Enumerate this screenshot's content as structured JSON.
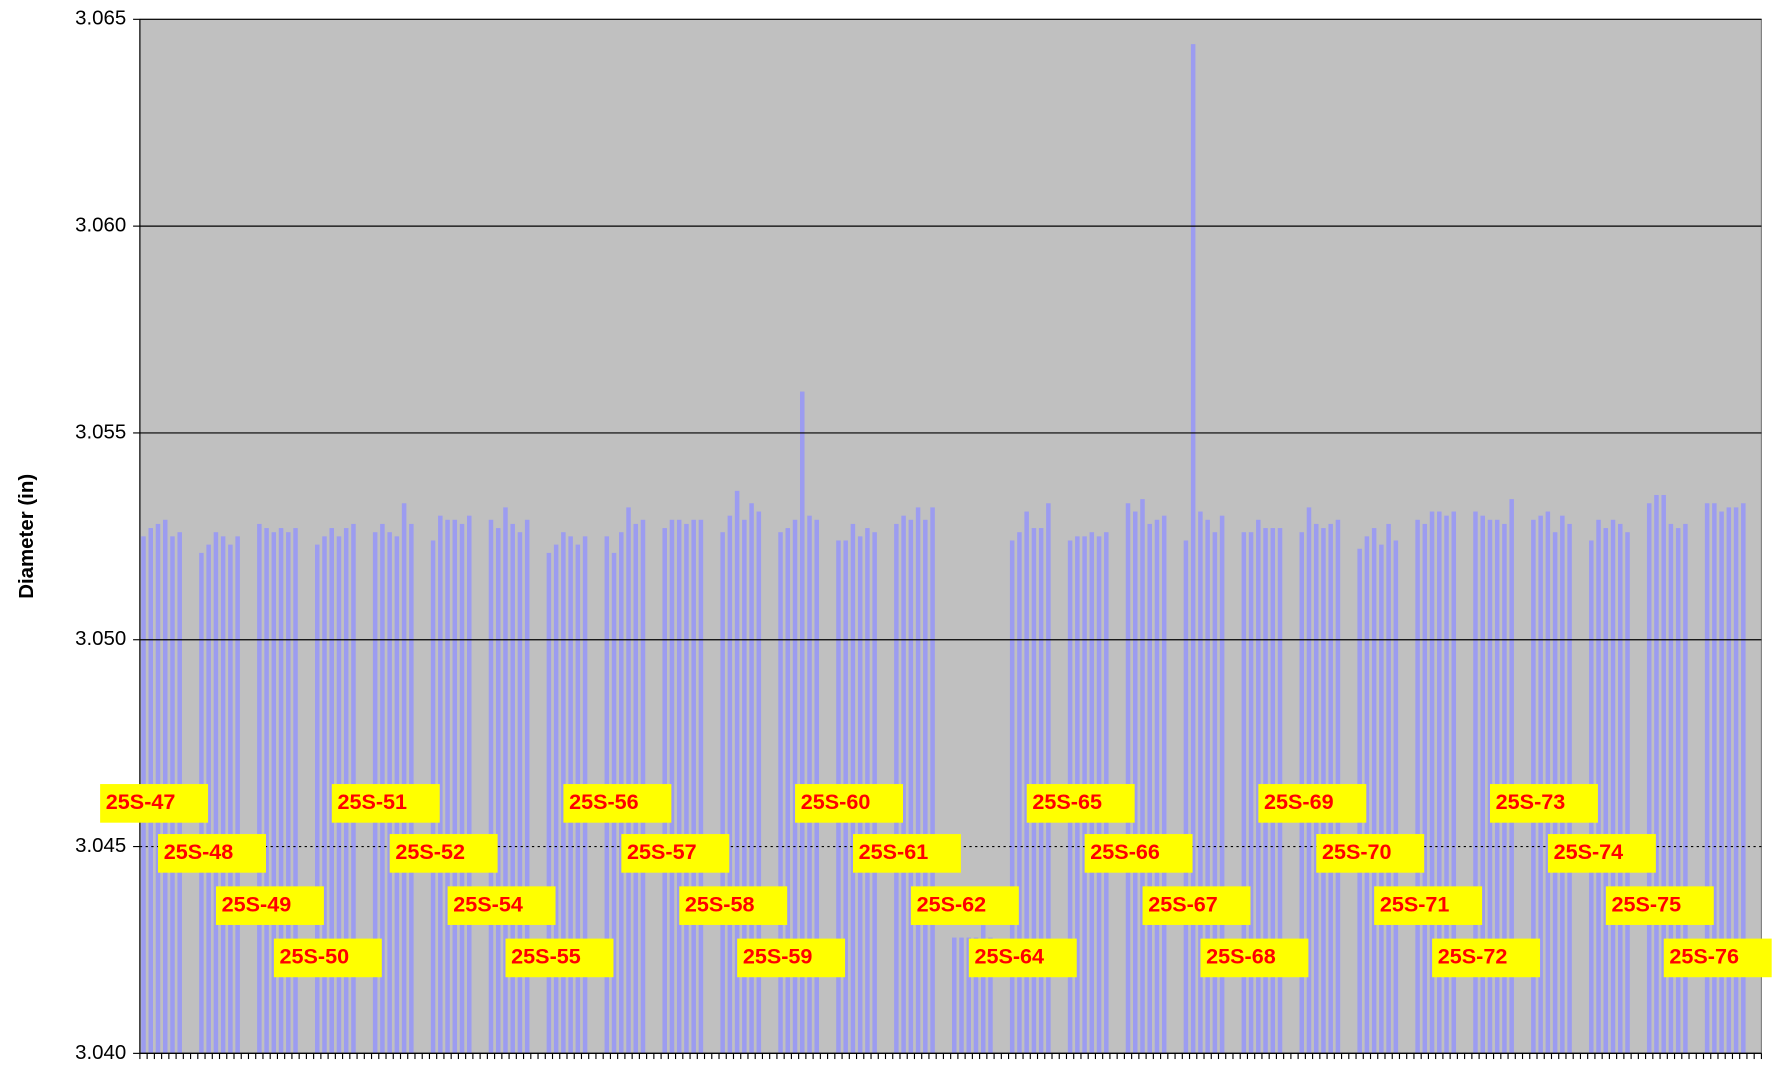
{
  "chart_data": {
    "type": "bar",
    "y_label": "Diameter (in)",
    "categories": [
      "25S-47",
      "25S-48",
      "25S-49",
      "25S-50",
      "25S-51",
      "25S-52",
      "25S-54",
      "25S-55",
      "25S-56",
      "25S-57",
      "25S-58",
      "25S-59",
      "25S-60",
      "25S-61",
      "25S-62",
      "25S-64",
      "25S-65",
      "25S-66",
      "25S-67",
      "25S-68",
      "25S-69",
      "25S-70",
      "25S-71",
      "25S-72",
      "25S-73",
      "25S-74",
      "25S-75",
      "25S-76"
    ],
    "values": [
      [
        3.0525,
        3.0527,
        3.0528,
        3.0529,
        3.0525,
        3.0526
      ],
      [
        3.0521,
        3.0523,
        3.0526,
        3.0525,
        3.0523,
        3.0525
      ],
      [
        3.0528,
        3.0527,
        3.0526,
        3.0527,
        3.0526,
        3.0527
      ],
      [
        3.0523,
        3.0525,
        3.0527,
        3.0525,
        3.0527,
        3.0528
      ],
      [
        3.0526,
        3.0528,
        3.0526,
        3.0525,
        3.0533,
        3.0528
      ],
      [
        3.0524,
        3.053,
        3.0529,
        3.0529,
        3.0528,
        3.053
      ],
      [
        3.0529,
        3.0527,
        3.0532,
        3.0528,
        3.0526,
        3.0529
      ],
      [
        3.0521,
        3.0523,
        3.0526,
        3.0525,
        3.0523,
        3.0525
      ],
      [
        3.0525,
        3.0521,
        3.0526,
        3.0532,
        3.0528,
        3.0529
      ],
      [
        3.0527,
        3.0529,
        3.0529,
        3.0528,
        3.0529,
        3.0529
      ],
      [
        3.0526,
        3.053,
        3.0536,
        3.0529,
        3.0533,
        3.0531
      ],
      [
        3.0526,
        3.0527,
        3.0529,
        3.056,
        3.053,
        3.0529
      ],
      [
        3.0524,
        3.0524,
        3.0528,
        3.0525,
        3.0527,
        3.0526
      ],
      [
        3.0528,
        3.053,
        3.0529,
        3.0532,
        3.0529,
        3.0532
      ],
      [
        3.0428,
        3.0428,
        3.0428,
        3.0428,
        3.0431,
        3.0428
      ],
      [
        3.0524,
        3.0526,
        3.0531,
        3.0527,
        3.0527,
        3.0533
      ],
      [
        3.0524,
        3.0525,
        3.0525,
        3.0526,
        3.0525,
        3.0526
      ],
      [
        3.0533,
        3.0531,
        3.0534,
        3.0528,
        3.0529,
        3.053
      ],
      [
        3.0524,
        3.0644,
        3.0531,
        3.0529,
        3.0526,
        3.053
      ],
      [
        3.0526,
        3.0526,
        3.0529,
        3.0527,
        3.0527,
        3.0527
      ],
      [
        3.0526,
        3.0532,
        3.0528,
        3.0527,
        3.0528,
        3.0529
      ],
      [
        3.0522,
        3.0525,
        3.0527,
        3.0523,
        3.0528,
        3.0524
      ],
      [
        3.0529,
        3.0528,
        3.0531,
        3.0531,
        3.053,
        3.0531
      ],
      [
        3.0531,
        3.053,
        3.0529,
        3.0529,
        3.0528,
        3.0534
      ],
      [
        3.0529,
        3.053,
        3.0531,
        3.0526,
        3.053,
        3.0528
      ],
      [
        3.0524,
        3.0529,
        3.0527,
        3.0529,
        3.0528,
        3.0526
      ],
      [
        3.0533,
        3.0535,
        3.0535,
        3.0528,
        3.0527,
        3.0528
      ],
      [
        3.0533,
        3.0533,
        3.0531,
        3.0532,
        3.0532,
        3.0533
      ]
    ],
    "color": "#9c9cf0",
    "ylim": [
      3.04,
      3.065
    ],
    "yticks": [
      {
        "value": 3.04,
        "label": "3.040"
      },
      3.045,
      {
        "value": 3.05,
        "label": "3.050"
      },
      3.055,
      {
        "value": 3.06,
        "label": "3.060"
      },
      3.065
    ],
    "grid": true
  }
}
